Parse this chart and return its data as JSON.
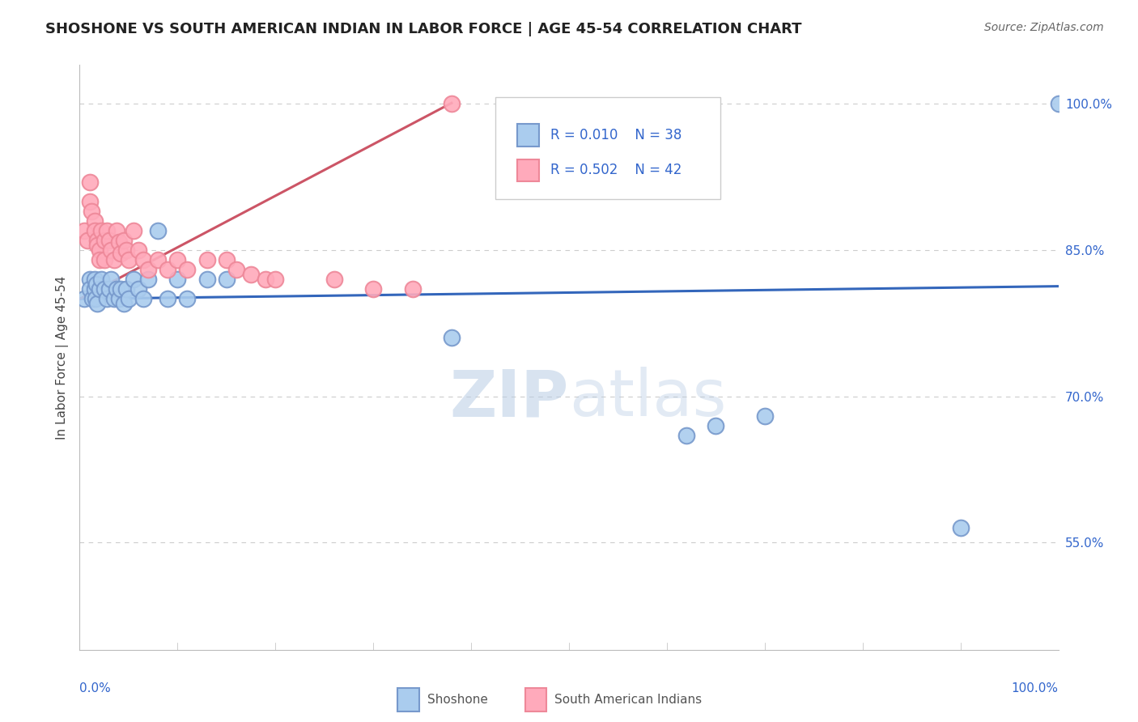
{
  "title": "SHOSHONE VS SOUTH AMERICAN INDIAN IN LABOR FORCE | AGE 45-54 CORRELATION CHART",
  "source": "Source: ZipAtlas.com",
  "ylabel": "In Labor Force | Age 45-54",
  "xlim": [
    0,
    1.0
  ],
  "ylim": [
    0.44,
    1.04
  ],
  "ytick_positions": [
    0.55,
    0.7,
    0.85,
    1.0
  ],
  "ytick_labels": [
    "55.0%",
    "70.0%",
    "85.0%",
    "100.0%"
  ],
  "grid_color": "#cccccc",
  "blue_color": "#7799cc",
  "pink_color": "#ee8899",
  "blue_fill": "#aaccee",
  "pink_fill": "#ffaabb",
  "r_blue": "R = 0.010",
  "n_blue": "N = 38",
  "r_pink": "R = 0.502",
  "n_pink": "N = 42",
  "legend_label_blue": "Shoshone",
  "legend_label_pink": "South American Indians",
  "blue_trend_x": [
    0.0,
    1.0
  ],
  "blue_trend_y": [
    0.8,
    0.813
  ],
  "pink_trend_x": [
    0.0,
    0.38
  ],
  "pink_trend_y": [
    0.8,
    1.001
  ],
  "blue_x": [
    0.005,
    0.01,
    0.01,
    0.013,
    0.015,
    0.015,
    0.016,
    0.017,
    0.018,
    0.02,
    0.022,
    0.025,
    0.028,
    0.03,
    0.032,
    0.035,
    0.038,
    0.04,
    0.042,
    0.045,
    0.048,
    0.05,
    0.055,
    0.06,
    0.065,
    0.07,
    0.08,
    0.09,
    0.1,
    0.11,
    0.13,
    0.15,
    0.38,
    0.62,
    0.65,
    0.7,
    0.9,
    1.0
  ],
  "blue_y": [
    0.8,
    0.82,
    0.81,
    0.8,
    0.81,
    0.82,
    0.8,
    0.815,
    0.795,
    0.81,
    0.82,
    0.81,
    0.8,
    0.81,
    0.82,
    0.8,
    0.81,
    0.8,
    0.81,
    0.795,
    0.81,
    0.8,
    0.82,
    0.81,
    0.8,
    0.82,
    0.87,
    0.8,
    0.82,
    0.8,
    0.82,
    0.82,
    0.76,
    0.66,
    0.67,
    0.68,
    0.565,
    1.0
  ],
  "pink_x": [
    0.005,
    0.008,
    0.01,
    0.01,
    0.012,
    0.015,
    0.015,
    0.018,
    0.018,
    0.02,
    0.02,
    0.022,
    0.025,
    0.025,
    0.028,
    0.03,
    0.032,
    0.035,
    0.038,
    0.04,
    0.042,
    0.045,
    0.048,
    0.05,
    0.055,
    0.06,
    0.065,
    0.07,
    0.08,
    0.09,
    0.1,
    0.11,
    0.13,
    0.15,
    0.16,
    0.175,
    0.19,
    0.2,
    0.26,
    0.3,
    0.34,
    0.38
  ],
  "pink_y": [
    0.87,
    0.86,
    0.92,
    0.9,
    0.89,
    0.88,
    0.87,
    0.86,
    0.855,
    0.85,
    0.84,
    0.87,
    0.86,
    0.84,
    0.87,
    0.86,
    0.85,
    0.84,
    0.87,
    0.858,
    0.847,
    0.86,
    0.85,
    0.84,
    0.87,
    0.85,
    0.84,
    0.83,
    0.84,
    0.83,
    0.84,
    0.83,
    0.84,
    0.84,
    0.83,
    0.825,
    0.82,
    0.82,
    0.82,
    0.81,
    0.81,
    1.0
  ],
  "title_color": "#222222",
  "tick_label_color": "#3366cc",
  "source_color": "#666666",
  "legend_text_color": "#3366cc",
  "axis_label_color": "#444444",
  "watermark_color": "#c8d8f0"
}
